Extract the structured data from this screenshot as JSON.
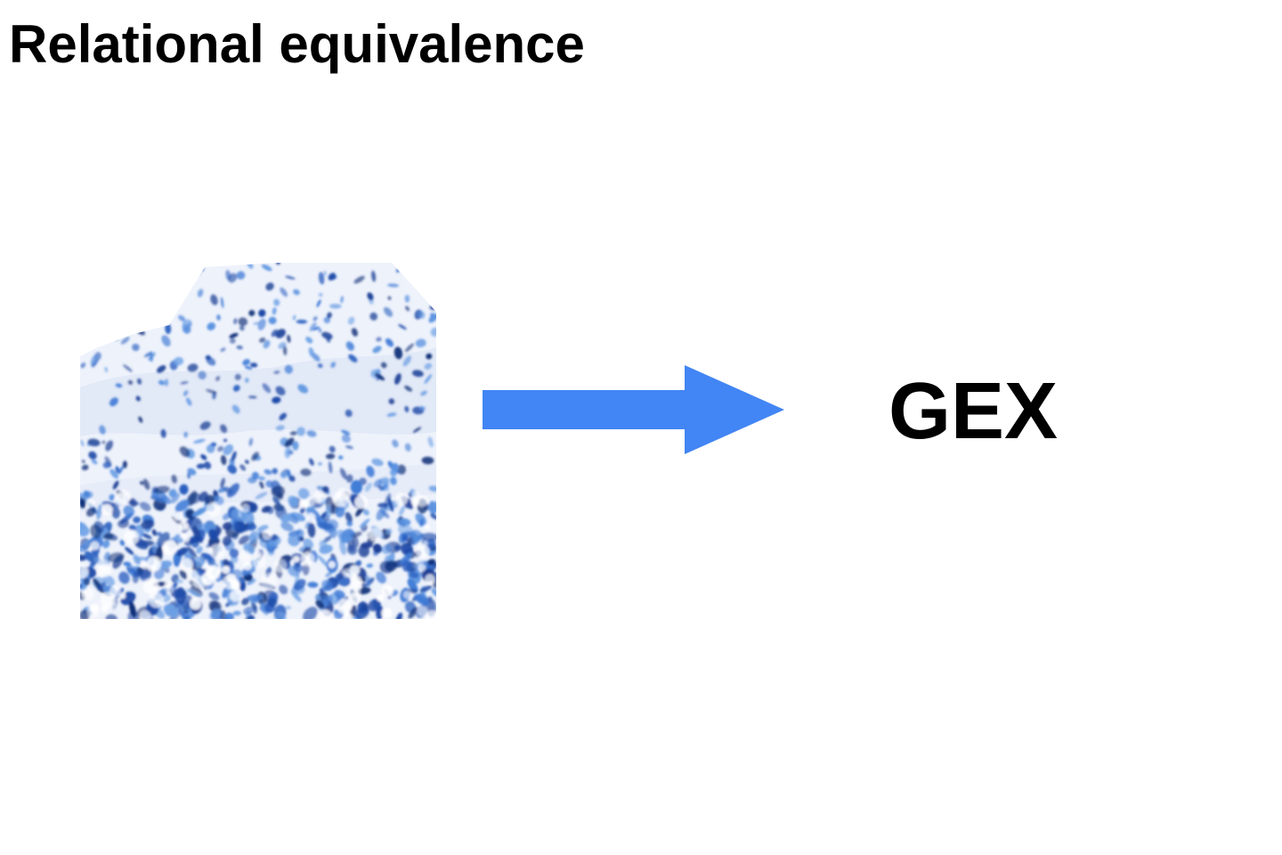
{
  "slide": {
    "title": "Relational equivalence"
  },
  "diagram": {
    "source": {
      "kind": "histology-tissue-image",
      "stain_color": "#2a5fc0",
      "background_color": "#ffffff"
    },
    "arrow": {
      "icon": "right-arrow-icon",
      "color": "#4285f4"
    },
    "target": {
      "label": "GEX"
    }
  }
}
